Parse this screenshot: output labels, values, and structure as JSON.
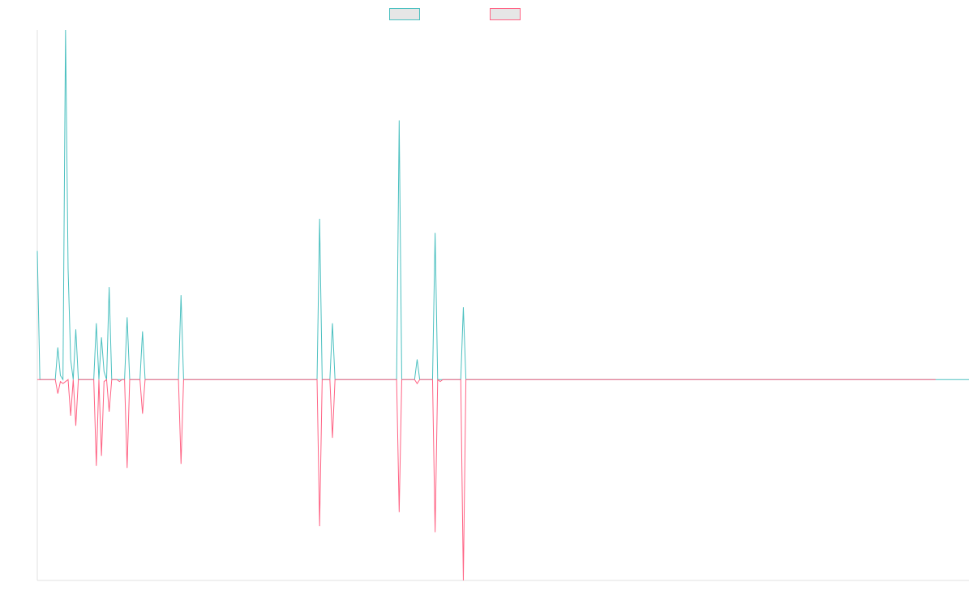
{
  "chart_data": {
    "type": "line",
    "title": "",
    "xlabel": "",
    "ylabel": "",
    "grid": false,
    "legend_position": "top-center",
    "ylim": [
      -100,
      174
    ],
    "series": [
      {
        "name": "",
        "color": "#4bc0c0",
        "values": [
          64,
          0,
          0,
          0,
          0,
          0,
          0,
          0,
          16,
          2,
          0,
          174,
          55,
          10,
          0,
          25,
          0,
          0,
          0,
          0,
          0,
          0,
          0,
          28,
          0,
          21,
          4,
          0,
          46,
          0,
          0,
          0,
          0,
          0,
          0,
          31,
          0,
          0,
          0,
          0,
          0,
          24,
          0,
          0,
          0,
          0,
          0,
          0,
          0,
          0,
          0,
          0,
          0,
          0,
          0,
          0,
          42,
          0,
          0,
          0,
          0,
          0,
          0,
          0,
          0,
          0,
          0,
          0,
          0,
          0,
          0,
          0,
          0,
          0,
          0,
          0,
          0,
          0,
          0,
          0,
          0,
          0,
          0,
          0,
          0,
          0,
          0,
          0,
          0,
          0,
          0,
          0,
          0,
          0,
          0,
          0,
          0,
          0,
          0,
          0,
          0,
          0,
          0,
          0,
          0,
          0,
          0,
          0,
          0,
          0,
          80,
          0,
          0,
          0,
          0,
          28,
          0,
          0,
          0,
          0,
          0,
          0,
          0,
          0,
          0,
          0,
          0,
          0,
          0,
          0,
          0,
          0,
          0,
          0,
          0,
          0,
          0,
          0,
          0,
          0,
          0,
          129,
          0,
          0,
          0,
          0,
          0,
          0,
          10,
          0,
          0,
          0,
          0,
          0,
          0,
          73,
          0,
          0,
          0,
          0,
          0,
          0,
          0,
          0,
          0,
          0,
          36,
          0,
          0,
          0,
          0,
          0,
          0,
          0,
          0,
          0,
          0,
          0,
          0,
          0,
          0,
          0,
          0,
          0,
          0,
          0,
          0,
          0,
          0,
          0,
          0,
          0,
          0,
          0,
          0,
          0,
          0,
          0,
          0,
          0,
          0,
          0,
          0,
          0,
          0,
          0,
          0,
          0,
          0,
          0,
          0,
          0,
          0,
          0,
          0,
          0,
          0,
          0,
          0,
          0,
          0,
          0,
          0,
          0,
          0,
          0,
          0,
          0,
          0,
          0,
          0,
          0,
          0,
          0,
          0,
          0,
          0,
          0,
          0,
          0,
          0,
          0,
          0,
          0,
          0,
          0,
          0,
          0,
          0,
          0,
          0,
          0,
          0,
          0,
          0,
          0,
          0,
          0,
          0,
          0,
          0,
          0,
          0,
          0,
          0,
          0,
          0,
          0,
          0,
          0,
          0,
          0,
          0,
          0,
          0,
          0,
          0,
          0,
          0,
          0,
          0,
          0,
          0,
          0,
          0,
          0,
          0,
          0,
          0,
          0,
          0,
          0,
          0,
          0,
          0,
          0,
          0,
          0,
          0,
          0,
          0,
          0,
          0,
          0,
          0,
          0,
          0,
          0,
          0,
          0,
          0,
          0,
          0,
          0,
          0,
          0,
          0,
          0,
          0,
          0,
          0,
          0,
          0,
          0,
          0,
          0,
          0,
          0,
          0,
          0,
          0,
          0,
          0,
          0,
          0,
          0,
          0,
          0,
          0,
          0,
          0,
          0,
          0,
          0,
          0,
          0,
          0,
          0,
          0,
          0,
          0,
          0,
          0,
          0,
          0,
          0,
          0,
          0,
          0,
          0,
          0,
          0,
          0,
          0
        ]
      },
      {
        "name": "",
        "color": "#ff6384",
        "values": [
          0,
          0,
          0,
          0,
          0,
          0,
          0,
          0,
          -7,
          -1,
          -2,
          -1,
          0,
          -18,
          0,
          -23,
          0,
          0,
          0,
          0,
          0,
          0,
          0,
          -43,
          0,
          -38,
          -1,
          0,
          -16,
          0,
          0,
          0,
          -1,
          0,
          0,
          -44,
          0,
          0,
          0,
          0,
          0,
          -17,
          0,
          0,
          0,
          0,
          0,
          0,
          0,
          0,
          0,
          0,
          0,
          0,
          0,
          0,
          -42,
          0,
          0,
          0,
          0,
          0,
          0,
          0,
          0,
          0,
          0,
          0,
          0,
          0,
          0,
          0,
          0,
          0,
          0,
          0,
          0,
          0,
          0,
          0,
          0,
          0,
          0,
          0,
          0,
          0,
          0,
          0,
          0,
          0,
          0,
          0,
          0,
          0,
          0,
          0,
          0,
          0,
          0,
          0,
          0,
          0,
          0,
          0,
          0,
          0,
          0,
          0,
          0,
          0,
          -73,
          0,
          0,
          0,
          0,
          -29,
          0,
          0,
          0,
          0,
          0,
          0,
          0,
          0,
          0,
          0,
          0,
          0,
          0,
          0,
          0,
          0,
          0,
          0,
          0,
          0,
          0,
          0,
          0,
          0,
          0,
          -66,
          0,
          0,
          0,
          0,
          0,
          0,
          -2,
          0,
          0,
          0,
          0,
          0,
          0,
          -76,
          0,
          -1,
          0,
          0,
          0,
          0,
          0,
          0,
          0,
          0,
          -100,
          0,
          0,
          0,
          0,
          0,
          0,
          0,
          0,
          0,
          0,
          0,
          0,
          0,
          0,
          0,
          0,
          0,
          0,
          0,
          0,
          0,
          0,
          0,
          0,
          0,
          0,
          0,
          0,
          0,
          0,
          0,
          0,
          0,
          0,
          0,
          0,
          0,
          0,
          0,
          0,
          0,
          0,
          0,
          0,
          0,
          0,
          0,
          0,
          0,
          0,
          0,
          0,
          0,
          0,
          0,
          0,
          0,
          0,
          0,
          0,
          0,
          0,
          0,
          0,
          0,
          0,
          0,
          0,
          0,
          0,
          0,
          0,
          0,
          0,
          0,
          0,
          0,
          0,
          0,
          0,
          0,
          0,
          0,
          0,
          0,
          0,
          0,
          0,
          0,
          0,
          0,
          0,
          0,
          0,
          0,
          0,
          0,
          0,
          0,
          0,
          0,
          0,
          0,
          0,
          0,
          0,
          0,
          0,
          0,
          0,
          0,
          0,
          0,
          0,
          0,
          0,
          0,
          0,
          0,
          0,
          0,
          0,
          0,
          0,
          0,
          0,
          0,
          0,
          0,
          0,
          0,
          0,
          0,
          0,
          0,
          0,
          0,
          0,
          0,
          0,
          0,
          0,
          0,
          0,
          0,
          0,
          0,
          0,
          0,
          0,
          0,
          0,
          0,
          0,
          0,
          0,
          0,
          0,
          0,
          0,
          0,
          0,
          0,
          0,
          0,
          0,
          0,
          0,
          0,
          0,
          0,
          0,
          0,
          0,
          0,
          0,
          0,
          0,
          0,
          0,
          0,
          0,
          0,
          0
        ]
      }
    ]
  }
}
